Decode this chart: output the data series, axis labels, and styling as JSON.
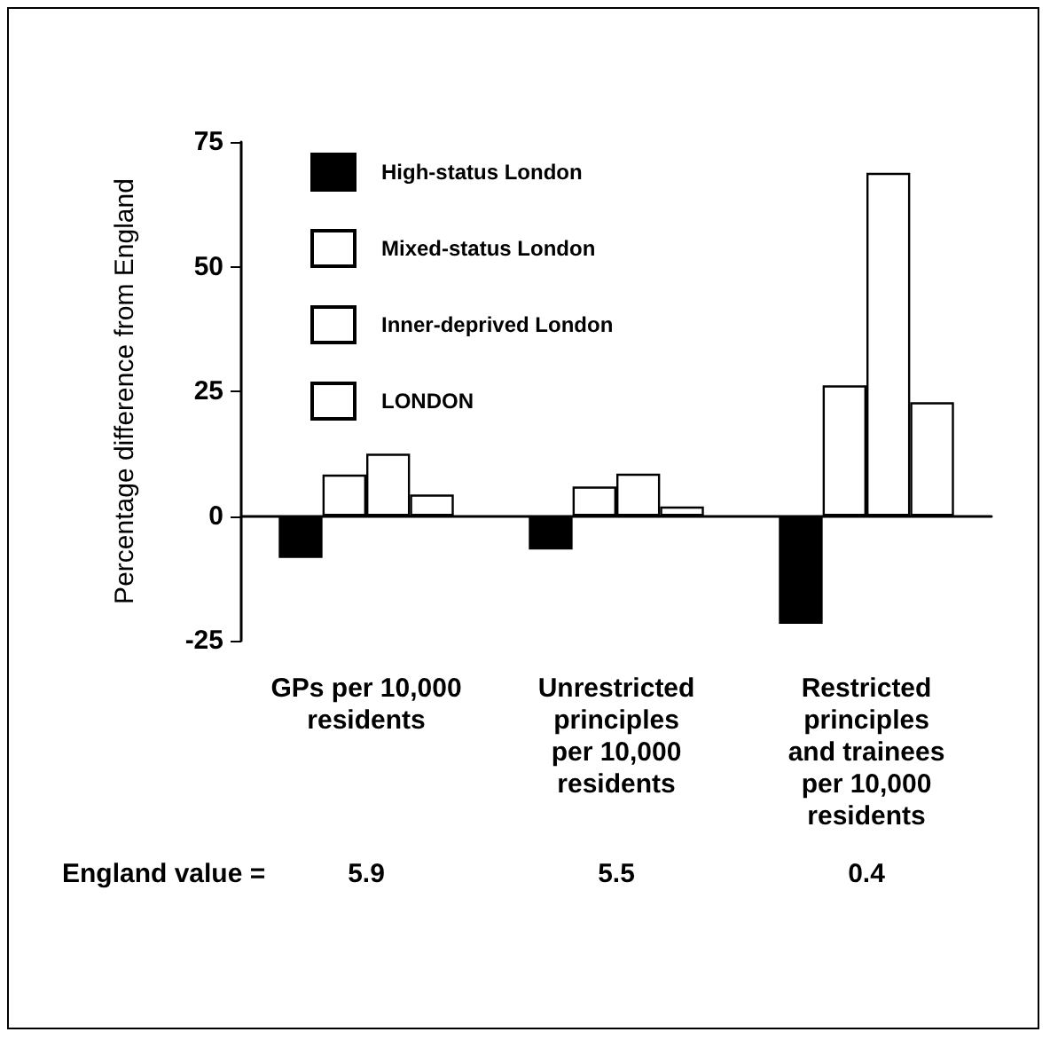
{
  "chart_data": {
    "type": "bar",
    "ylabel": "Percentage difference from England",
    "categories": [
      "GPs per 10,000\nresidents",
      "Unrestricted\nprinciples\nper 10,000\nresidents",
      "Restricted\nprinciples\nand trainees\nper 10,000\nresidents"
    ],
    "series": [
      {
        "name": "High-status London",
        "color": "#000000",
        "values": [
          -8.4,
          -6.7,
          -21.6
        ]
      },
      {
        "name": "Mixed-status London",
        "color": "#ffffff",
        "values": [
          8.3,
          5.9,
          26.2
        ]
      },
      {
        "name": "Inner-deprived London",
        "color": "#ffffff",
        "values": [
          12.5,
          8.5,
          68.8
        ]
      },
      {
        "name": "LONDON",
        "color": "#ffffff",
        "values": [
          4.3,
          1.9,
          22.8
        ]
      }
    ],
    "ylim": [
      -25,
      75
    ],
    "yticks": [
      -25,
      0,
      25,
      50,
      75
    ],
    "legend": "top left",
    "annotations": [
      "England value =",
      "5.9",
      "5.5",
      "0.4"
    ]
  }
}
